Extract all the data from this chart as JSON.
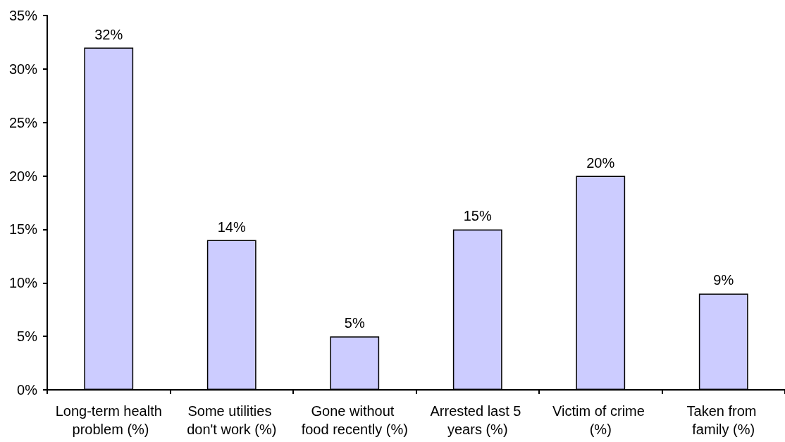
{
  "chart_data": {
    "type": "bar",
    "categories": [
      "Long-term health problem (%)",
      "Some utilities don't work (%)",
      "Gone without food recently (%)",
      "Arrested last 5 years (%)",
      "Victim of crime (%)",
      "Taken from family (%)"
    ],
    "values": [
      32,
      14,
      5,
      15,
      20,
      9
    ],
    "value_labels": [
      "32%",
      "14%",
      "5%",
      "15%",
      "20%",
      "9%"
    ],
    "color": "#ccccff",
    "ylim": [
      0,
      35
    ],
    "yticks": [
      {
        "value": 0,
        "label": "0%"
      },
      {
        "value": 5,
        "label": "5%"
      },
      {
        "value": 10,
        "label": "10%"
      },
      {
        "value": 15,
        "label": "15%"
      },
      {
        "value": 20,
        "label": "20%"
      },
      {
        "value": 25,
        "label": "25%"
      },
      {
        "value": 30,
        "label": "30%"
      },
      {
        "value": 35,
        "label": "35%"
      }
    ]
  }
}
